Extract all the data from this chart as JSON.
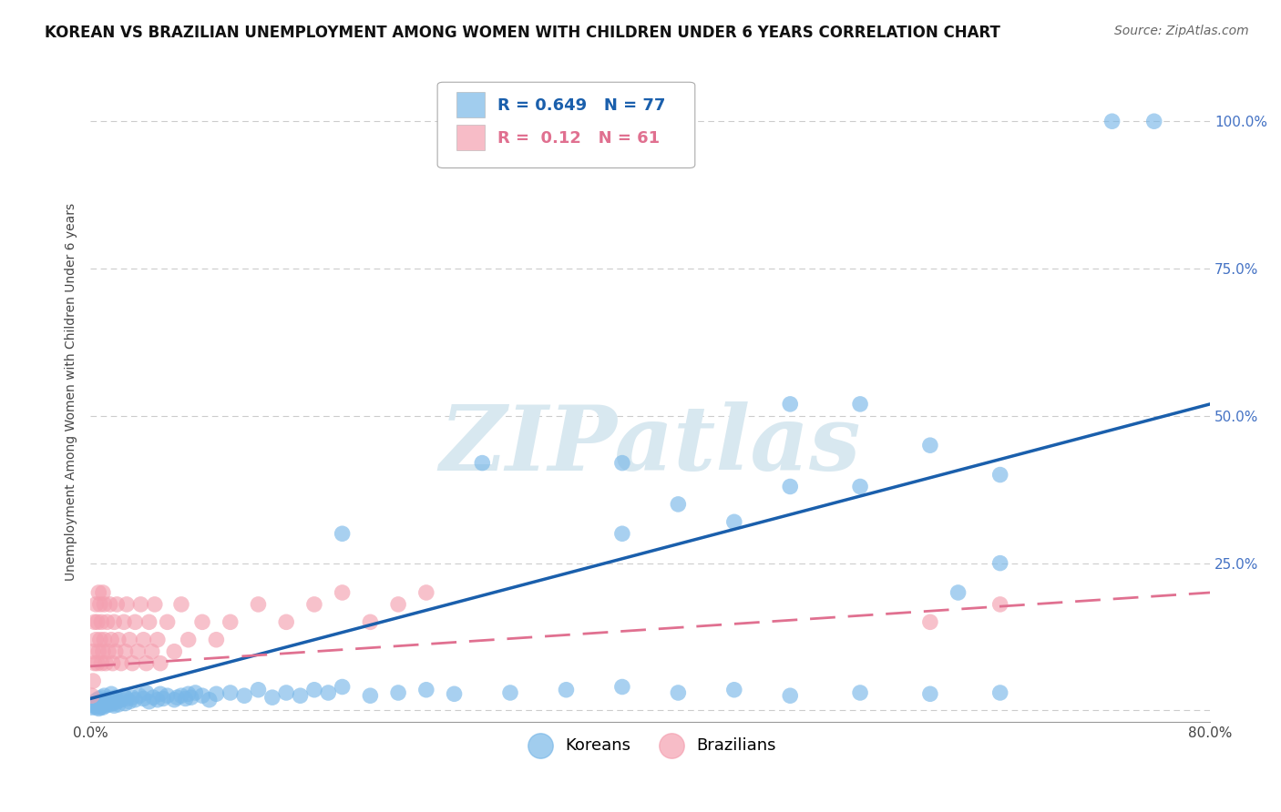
{
  "title": "KOREAN VS BRAZILIAN UNEMPLOYMENT AMONG WOMEN WITH CHILDREN UNDER 6 YEARS CORRELATION CHART",
  "source": "Source: ZipAtlas.com",
  "ylabel": "Unemployment Among Women with Children Under 6 years",
  "xlim": [
    0.0,
    0.8
  ],
  "ylim": [
    -0.02,
    1.1
  ],
  "xticks": [
    0.0,
    0.1,
    0.2,
    0.3,
    0.4,
    0.5,
    0.6,
    0.7,
    0.8
  ],
  "xticklabels": [
    "0.0%",
    "",
    "",
    "",
    "",
    "",
    "",
    "",
    "80.0%"
  ],
  "yticks": [
    0.0,
    0.25,
    0.5,
    0.75,
    1.0
  ],
  "yticklabels": [
    "",
    "25.0%",
    "50.0%",
    "75.0%",
    "100.0%"
  ],
  "korean_color": "#7ab8e8",
  "brazilian_color": "#f4a0b0",
  "korean_line_color": "#1a5fac",
  "brazilian_line_color": "#e07090",
  "korean_R": 0.649,
  "korean_N": 77,
  "brazilian_R": 0.12,
  "brazilian_N": 61,
  "background_color": "#ffffff",
  "grid_color": "#cccccc",
  "korean_trend_x0": 0.0,
  "korean_trend_y0": 0.02,
  "korean_trend_x1": 0.8,
  "korean_trend_y1": 0.52,
  "brazilian_trend_x0": 0.0,
  "brazilian_trend_y0": 0.075,
  "brazilian_trend_x1": 0.8,
  "brazilian_trend_y1": 0.2,
  "korean_scatter": [
    [
      0.001,
      0.005
    ],
    [
      0.002,
      0.01
    ],
    [
      0.003,
      0.008
    ],
    [
      0.003,
      0.015
    ],
    [
      0.004,
      0.005
    ],
    [
      0.004,
      0.012
    ],
    [
      0.005,
      0.008
    ],
    [
      0.005,
      0.018
    ],
    [
      0.006,
      0.003
    ],
    [
      0.006,
      0.01
    ],
    [
      0.006,
      0.02
    ],
    [
      0.007,
      0.005
    ],
    [
      0.007,
      0.015
    ],
    [
      0.008,
      0.008
    ],
    [
      0.008,
      0.022
    ],
    [
      0.009,
      0.005
    ],
    [
      0.009,
      0.018
    ],
    [
      0.01,
      0.01
    ],
    [
      0.01,
      0.025
    ],
    [
      0.011,
      0.008
    ],
    [
      0.012,
      0.015
    ],
    [
      0.013,
      0.02
    ],
    [
      0.014,
      0.01
    ],
    [
      0.015,
      0.028
    ],
    [
      0.016,
      0.012
    ],
    [
      0.017,
      0.008
    ],
    [
      0.018,
      0.022
    ],
    [
      0.019,
      0.015
    ],
    [
      0.02,
      0.01
    ],
    [
      0.022,
      0.018
    ],
    [
      0.024,
      0.025
    ],
    [
      0.025,
      0.012
    ],
    [
      0.026,
      0.02
    ],
    [
      0.028,
      0.015
    ],
    [
      0.03,
      0.022
    ],
    [
      0.032,
      0.018
    ],
    [
      0.035,
      0.025
    ],
    [
      0.038,
      0.02
    ],
    [
      0.04,
      0.03
    ],
    [
      0.042,
      0.015
    ],
    [
      0.045,
      0.022
    ],
    [
      0.048,
      0.018
    ],
    [
      0.05,
      0.028
    ],
    [
      0.052,
      0.02
    ],
    [
      0.055,
      0.025
    ],
    [
      0.06,
      0.018
    ],
    [
      0.062,
      0.022
    ],
    [
      0.065,
      0.025
    ],
    [
      0.068,
      0.02
    ],
    [
      0.07,
      0.028
    ],
    [
      0.072,
      0.022
    ],
    [
      0.075,
      0.03
    ],
    [
      0.08,
      0.025
    ],
    [
      0.085,
      0.018
    ],
    [
      0.09,
      0.028
    ],
    [
      0.1,
      0.03
    ],
    [
      0.11,
      0.025
    ],
    [
      0.12,
      0.035
    ],
    [
      0.13,
      0.022
    ],
    [
      0.14,
      0.03
    ],
    [
      0.15,
      0.025
    ],
    [
      0.16,
      0.035
    ],
    [
      0.17,
      0.03
    ],
    [
      0.18,
      0.04
    ],
    [
      0.2,
      0.025
    ],
    [
      0.22,
      0.03
    ],
    [
      0.24,
      0.035
    ],
    [
      0.26,
      0.028
    ],
    [
      0.3,
      0.03
    ],
    [
      0.34,
      0.035
    ],
    [
      0.38,
      0.04
    ],
    [
      0.42,
      0.03
    ],
    [
      0.46,
      0.035
    ],
    [
      0.5,
      0.025
    ],
    [
      0.55,
      0.03
    ],
    [
      0.6,
      0.028
    ],
    [
      0.65,
      0.03
    ]
  ],
  "korean_outliers": [
    [
      0.73,
      1.0
    ],
    [
      0.76,
      1.0
    ],
    [
      0.5,
      0.52
    ],
    [
      0.55,
      0.52
    ],
    [
      0.38,
      0.42
    ],
    [
      0.28,
      0.42
    ],
    [
      0.38,
      0.3
    ],
    [
      0.42,
      0.35
    ],
    [
      0.46,
      0.32
    ],
    [
      0.5,
      0.38
    ],
    [
      0.55,
      0.38
    ],
    [
      0.6,
      0.45
    ],
    [
      0.65,
      0.4
    ],
    [
      0.18,
      0.3
    ],
    [
      0.65,
      0.25
    ],
    [
      0.62,
      0.2
    ]
  ],
  "brazilian_scatter": [
    [
      0.001,
      0.025
    ],
    [
      0.002,
      0.05
    ],
    [
      0.002,
      0.1
    ],
    [
      0.003,
      0.08
    ],
    [
      0.003,
      0.15
    ],
    [
      0.004,
      0.12
    ],
    [
      0.004,
      0.18
    ],
    [
      0.005,
      0.08
    ],
    [
      0.005,
      0.15
    ],
    [
      0.006,
      0.1
    ],
    [
      0.006,
      0.2
    ],
    [
      0.007,
      0.12
    ],
    [
      0.007,
      0.18
    ],
    [
      0.008,
      0.08
    ],
    [
      0.008,
      0.15
    ],
    [
      0.009,
      0.1
    ],
    [
      0.009,
      0.2
    ],
    [
      0.01,
      0.12
    ],
    [
      0.01,
      0.18
    ],
    [
      0.011,
      0.08
    ],
    [
      0.012,
      0.15
    ],
    [
      0.013,
      0.1
    ],
    [
      0.014,
      0.18
    ],
    [
      0.015,
      0.12
    ],
    [
      0.016,
      0.08
    ],
    [
      0.017,
      0.15
    ],
    [
      0.018,
      0.1
    ],
    [
      0.019,
      0.18
    ],
    [
      0.02,
      0.12
    ],
    [
      0.022,
      0.08
    ],
    [
      0.024,
      0.15
    ],
    [
      0.025,
      0.1
    ],
    [
      0.026,
      0.18
    ],
    [
      0.028,
      0.12
    ],
    [
      0.03,
      0.08
    ],
    [
      0.032,
      0.15
    ],
    [
      0.034,
      0.1
    ],
    [
      0.036,
      0.18
    ],
    [
      0.038,
      0.12
    ],
    [
      0.04,
      0.08
    ],
    [
      0.042,
      0.15
    ],
    [
      0.044,
      0.1
    ],
    [
      0.046,
      0.18
    ],
    [
      0.048,
      0.12
    ],
    [
      0.05,
      0.08
    ],
    [
      0.055,
      0.15
    ],
    [
      0.06,
      0.1
    ],
    [
      0.065,
      0.18
    ],
    [
      0.07,
      0.12
    ],
    [
      0.08,
      0.15
    ],
    [
      0.09,
      0.12
    ],
    [
      0.1,
      0.15
    ],
    [
      0.12,
      0.18
    ],
    [
      0.14,
      0.15
    ],
    [
      0.16,
      0.18
    ],
    [
      0.18,
      0.2
    ],
    [
      0.2,
      0.15
    ],
    [
      0.22,
      0.18
    ],
    [
      0.24,
      0.2
    ],
    [
      0.6,
      0.15
    ],
    [
      0.65,
      0.18
    ]
  ],
  "title_fontsize": 12,
  "axis_fontsize": 10,
  "tick_fontsize": 11,
  "legend_fontsize": 13
}
